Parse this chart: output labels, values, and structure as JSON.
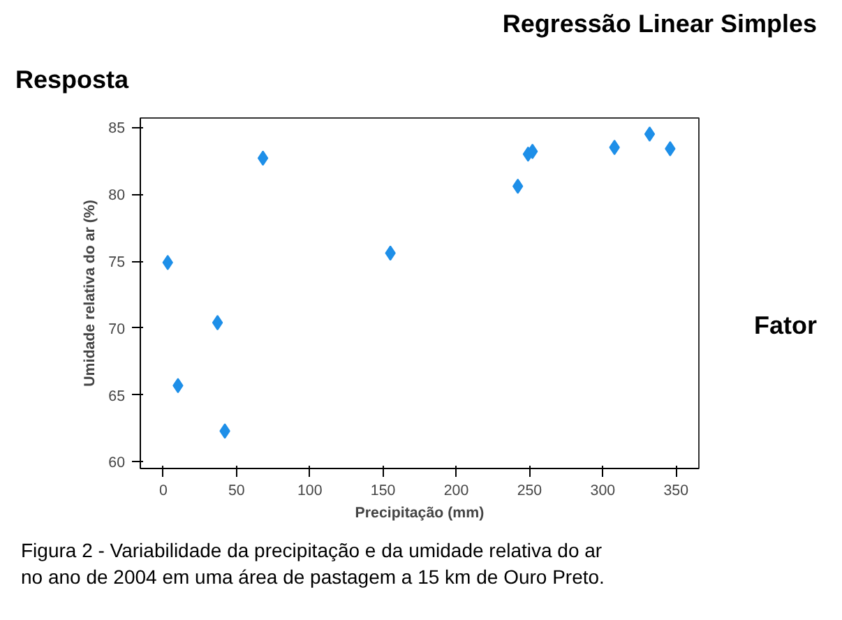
{
  "chart_data": {
    "type": "scatter",
    "title": "Regressão Linear Simples",
    "xlabel": "Precipitação (mm)",
    "ylabel": "Umidade relativa do ar (%)",
    "annotations": [
      "Resposta",
      "Fator",
      "Figura 2 -  Variabilidade da precipitação e da umidade relativa do ar",
      "no ano de 2004  em uma área de pastagem a 15 km de Ouro Preto."
    ],
    "x": [
      3,
      10,
      37,
      42,
      68,
      155,
      242,
      249,
      252,
      308,
      332,
      346
    ],
    "series": [
      {
        "color": "#1e8fe8",
        "values": [
          74.9,
          65.7,
          70.4,
          62.3,
          82.7,
          75.6,
          80.6,
          83.0,
          83.2,
          83.5,
          84.5,
          83.4
        ]
      }
    ],
    "xlim": [
      -15.7,
      365.6
    ],
    "ylim": [
      59.5,
      85.7
    ],
    "xticks": [
      0,
      50,
      100,
      150,
      200,
      250,
      300,
      350
    ],
    "yticks": [
      60,
      65,
      70,
      75,
      80,
      85
    ],
    "grid": false,
    "marker": "diamond"
  }
}
